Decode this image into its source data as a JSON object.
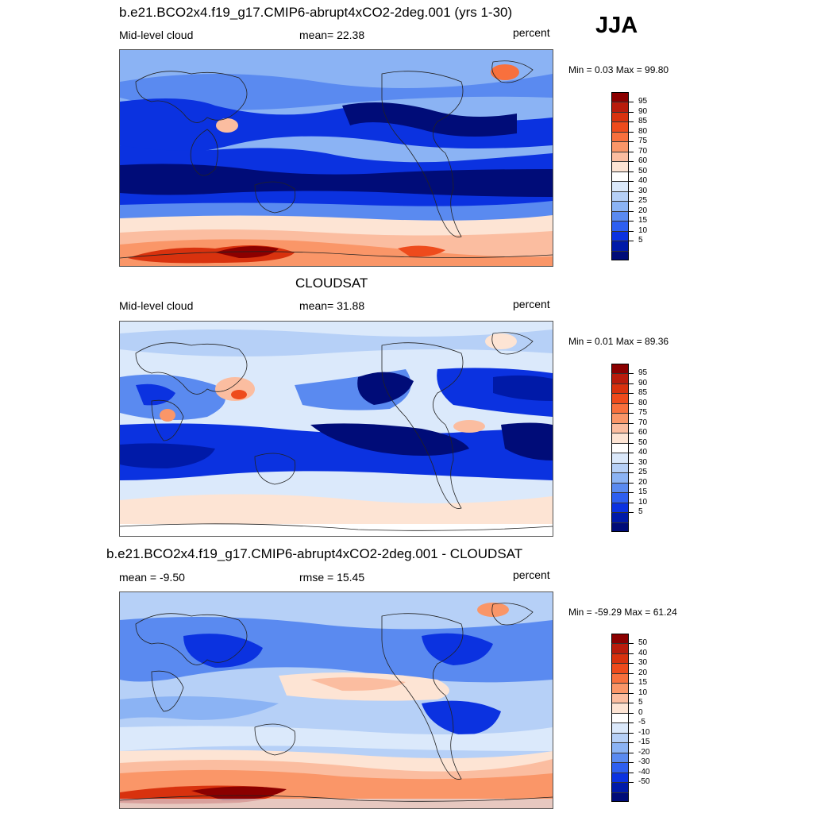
{
  "season": "JJA",
  "panels": [
    {
      "title": "b.e21.BCO2x4.f19_g17.CMIP6-abrupt4xCO2-2deg.001 (yrs 1-30)",
      "left": "Mid-level cloud",
      "center": "mean=  22.38",
      "right": "percent",
      "minmax": "Min =   0.03 Max =  99.80"
    },
    {
      "title": "CLOUDSAT",
      "left": "Mid-level cloud",
      "center": "mean=  31.88",
      "right": "percent",
      "minmax": "Min =   0.01 Max =  89.36"
    },
    {
      "title": "b.e21.BCO2x4.f19_g17.CMIP6-abrupt4xCO2-2deg.001 - CLOUDSAT",
      "left": "mean =  -9.50",
      "center": "rmse =  15.45",
      "right": "percent",
      "minmax": "Min = -59.29 Max =  61.24"
    }
  ],
  "colorbars": [
    {
      "labels": [
        "95",
        "90",
        "85",
        "80",
        "75",
        "70",
        "60",
        "50",
        "40",
        "30",
        "25",
        "20",
        "15",
        "10",
        "5"
      ],
      "colors": [
        "#8b0000",
        "#b81c0c",
        "#d8320e",
        "#ee4b1c",
        "#f8703d",
        "#fa9668",
        "#fbbda0",
        "#fde4d4",
        "#ffffff",
        "#dbe9fb",
        "#b6d0f7",
        "#8bb3f4",
        "#5a8af0",
        "#2e5ff0",
        "#0b32e0",
        "#001aa8",
        "#000c78"
      ]
    },
    {
      "labels": [
        "95",
        "90",
        "85",
        "80",
        "75",
        "70",
        "60",
        "50",
        "40",
        "30",
        "25",
        "20",
        "15",
        "10",
        "5"
      ],
      "colors": [
        "#8b0000",
        "#b81c0c",
        "#d8320e",
        "#ee4b1c",
        "#f8703d",
        "#fa9668",
        "#fbbda0",
        "#fde4d4",
        "#ffffff",
        "#dbe9fb",
        "#b6d0f7",
        "#8bb3f4",
        "#5a8af0",
        "#2e5ff0",
        "#0b32e0",
        "#001aa8",
        "#000c78"
      ]
    },
    {
      "labels": [
        "50",
        "40",
        "30",
        "20",
        "15",
        "10",
        "5",
        "0",
        "-5",
        "-10",
        "-15",
        "-20",
        "-30",
        "-40",
        "-50"
      ],
      "colors": [
        "#8b0000",
        "#b81c0c",
        "#d8320e",
        "#ee4b1c",
        "#f8703d",
        "#fa9668",
        "#fbbda0",
        "#fde4d4",
        "#ffffff",
        "#dbe9fb",
        "#b6d0f7",
        "#8bb3f4",
        "#5a8af0",
        "#2e5ff0",
        "#0b32e0",
        "#001aa8",
        "#000c78"
      ]
    }
  ]
}
